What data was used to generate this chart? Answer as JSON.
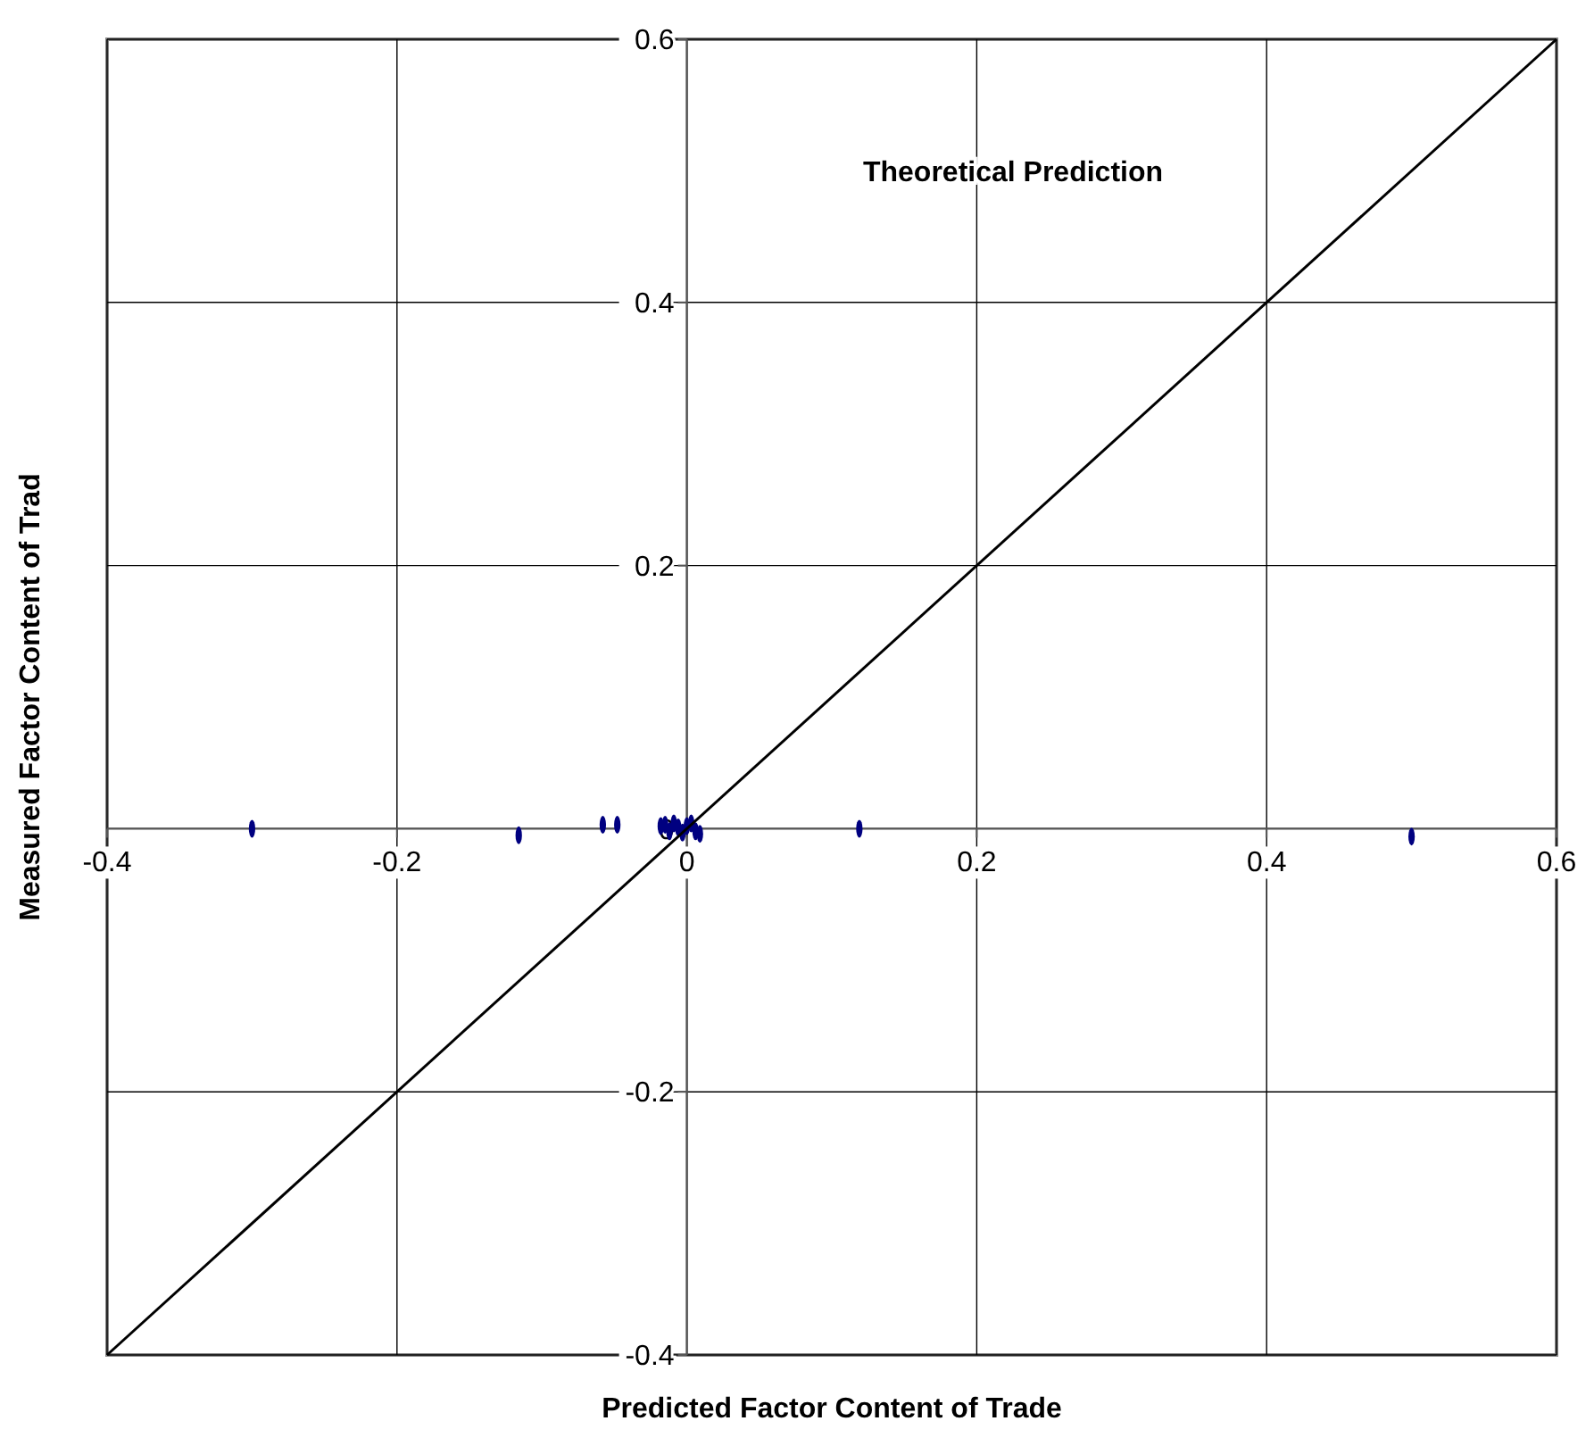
{
  "chart_data": {
    "type": "scatter",
    "xlabel": "Predicted Factor Content of Trade",
    "ylabel": "Measured Factor Content of Trad",
    "xlim": [
      -0.4,
      0.6
    ],
    "ylim": [
      -0.4,
      0.6
    ],
    "xticks": [
      -0.4,
      -0.2,
      0,
      0.2,
      0.4,
      0.6
    ],
    "yticks": [
      -0.4,
      -0.2,
      0,
      0.2,
      0.4,
      0.6
    ],
    "grid": true,
    "x": [
      -0.3,
      -0.116,
      -0.058,
      -0.048,
      -0.018,
      -0.015,
      -0.012,
      -0.009,
      -0.006,
      -0.003,
      0,
      0.003,
      0.006,
      0.009,
      0.119,
      0.5
    ],
    "series": [
      {
        "color": "#000080",
        "values": [
          0,
          -0.005,
          0.003,
          0.003,
          0.002,
          0.003,
          -0.002,
          0.004,
          0.001,
          -0.003,
          0.002,
          0.004,
          -0.002,
          -0.004,
          0,
          -0.006
        ]
      },
      {
        "type": "line",
        "color": "#000000",
        "x": [
          -0.4,
          0.6
        ],
        "values": [
          -0.4,
          0.6
        ]
      }
    ],
    "annotations": [
      "Theoretical Prediction"
    ]
  }
}
